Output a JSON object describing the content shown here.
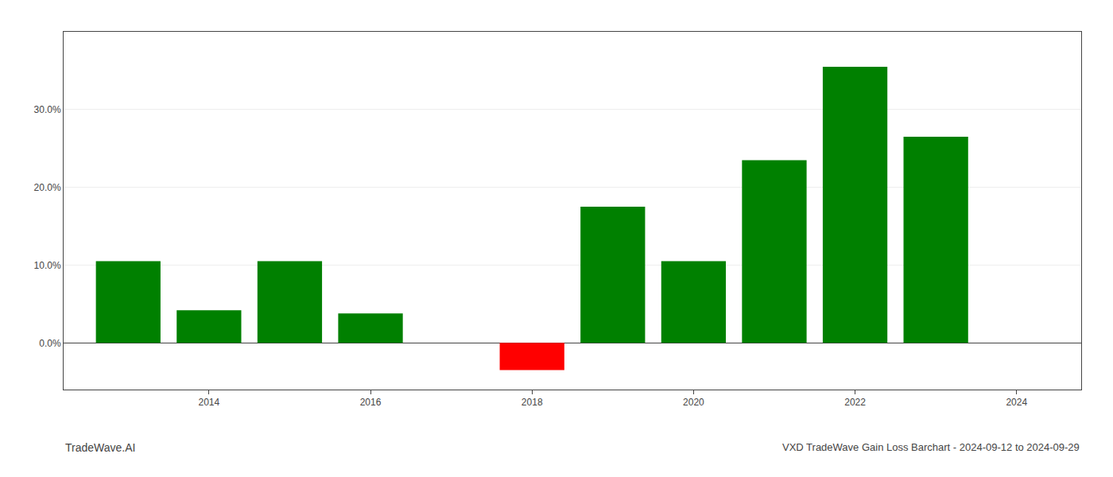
{
  "chart_data": {
    "type": "bar",
    "x": [
      2013,
      2014,
      2015,
      2016,
      2018,
      2019,
      2020,
      2021,
      2022,
      2023
    ],
    "values": [
      0.105,
      0.042,
      0.105,
      0.038,
      -0.035,
      0.175,
      0.105,
      0.235,
      0.355,
      0.265
    ],
    "colors": [
      "#008000",
      "#008000",
      "#008000",
      "#008000",
      "#ff0000",
      "#008000",
      "#008000",
      "#008000",
      "#008000",
      "#008000"
    ],
    "xlim": [
      2012.2,
      2024.8
    ],
    "xticks": [
      2014,
      2016,
      2018,
      2020,
      2022,
      2024
    ],
    "ylim": [
      -0.06,
      0.4
    ],
    "yticks": [
      {
        "value": 0.0,
        "label": "0.0%"
      },
      {
        "value": 0.1,
        "label": "10.0%"
      },
      {
        "value": 0.2,
        "label": "20.0%"
      },
      {
        "value": 0.3,
        "label": "30.0%"
      }
    ],
    "grid": true,
    "annotations": [
      "TradeWave.AI",
      "VXD TradeWave Gain Loss Barchart - 2024-09-12 to 2024-09-29"
    ]
  }
}
